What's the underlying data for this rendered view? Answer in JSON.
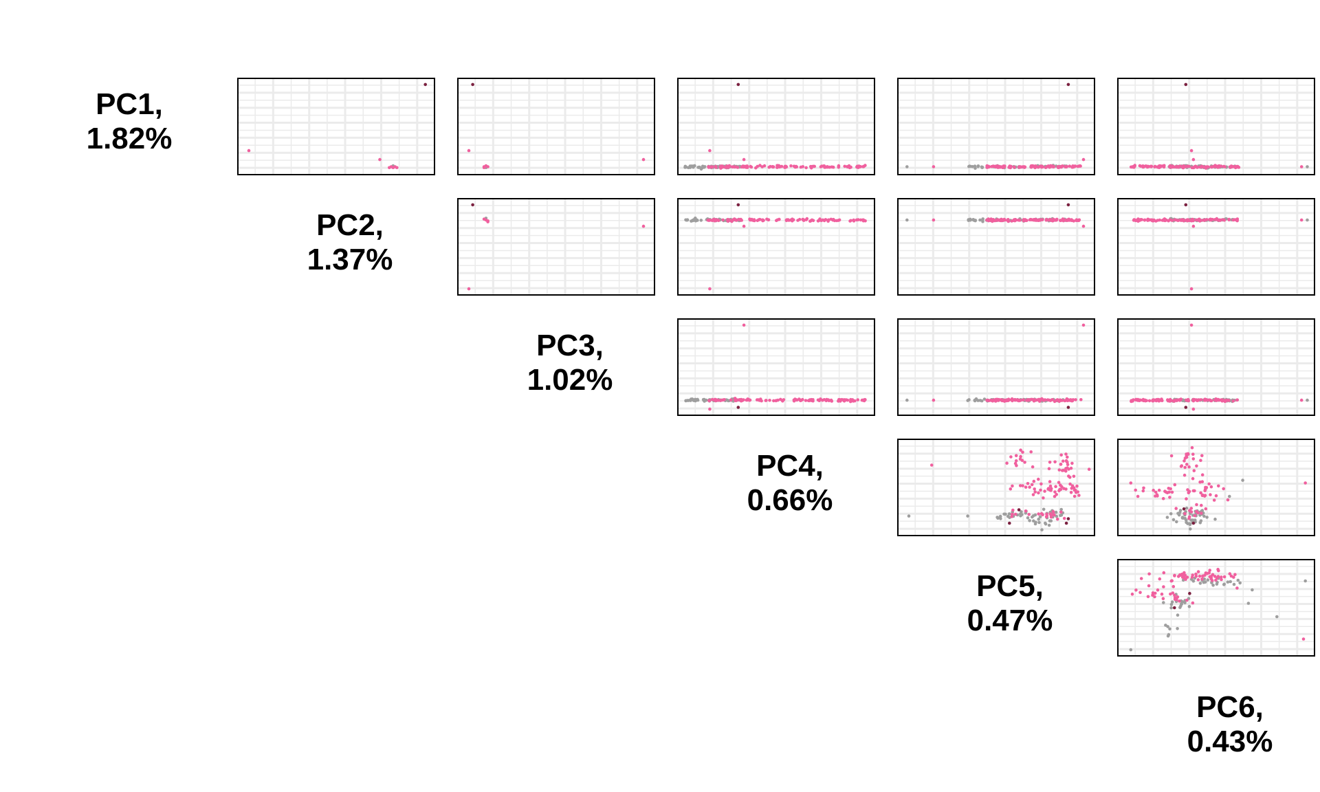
{
  "chart_data": {
    "type": "scatter",
    "layout": "pairs-matrix-upper",
    "diagonal_labels": [
      {
        "line1": "PC1,",
        "line2": "1.82%"
      },
      {
        "line1": "PC2,",
        "line2": "1.37%"
      },
      {
        "line1": "PC3,",
        "line2": "1.02%"
      },
      {
        "line1": "PC4,",
        "line2": "0.66%"
      },
      {
        "line1": "PC5,",
        "line2": "0.47%"
      },
      {
        "line1": "PC6,",
        "line2": "0.43%"
      }
    ],
    "series_colors": {
      "pink": "#f0609e",
      "gray": "#9e9e9e",
      "dark": "#7b2140"
    },
    "grid": true,
    "panel_background": "#ffffff",
    "grid_color": "#ebebeb",
    "panels": [
      {
        "row": 1,
        "col": 2,
        "points": [
          {
            "x": 0.04,
            "y": 0.23,
            "c": "pink"
          },
          {
            "x": 0.97,
            "y": 0.97,
            "c": "dark"
          },
          {
            "x": 0.73,
            "y": 0.13,
            "c": "pink"
          },
          {
            "x": 0.79,
            "y": 0.05,
            "c": "pink"
          },
          {
            "x": 0.8,
            "y": 0.04,
            "c": "pink"
          },
          {
            "x": 0.81,
            "y": 0.05,
            "c": "pink"
          },
          {
            "x": 0.78,
            "y": 0.04,
            "c": "pink"
          },
          {
            "x": 0.8,
            "y": 0.06,
            "c": "gray"
          },
          {
            "x": 0.82,
            "y": 0.04,
            "c": "pink"
          }
        ]
      },
      {
        "row": 1,
        "col": 3,
        "points": [
          {
            "x": 0.06,
            "y": 0.97,
            "c": "dark"
          },
          {
            "x": 0.04,
            "y": 0.23,
            "c": "pink"
          },
          {
            "x": 0.96,
            "y": 0.13,
            "c": "pink"
          },
          {
            "x": 0.12,
            "y": 0.05,
            "c": "pink"
          },
          {
            "x": 0.13,
            "y": 0.04,
            "c": "gray"
          },
          {
            "x": 0.14,
            "y": 0.05,
            "c": "pink"
          },
          {
            "x": 0.12,
            "y": 0.04,
            "c": "pink"
          },
          {
            "x": 0.13,
            "y": 0.06,
            "c": "pink"
          }
        ]
      },
      {
        "row": 1,
        "col": 4,
        "band": {
          "y": 0.05,
          "gray": [
            0.02,
            0.32
          ],
          "pink": [
            0.14,
            0.97
          ],
          "n": 90
        },
        "points": [
          {
            "x": 0.3,
            "y": 0.97,
            "c": "dark"
          },
          {
            "x": 0.15,
            "y": 0.23,
            "c": "pink"
          },
          {
            "x": 0.33,
            "y": 0.13,
            "c": "pink"
          }
        ]
      },
      {
        "row": 1,
        "col": 5,
        "band": {
          "y": 0.05,
          "gray": [
            0.35,
            0.88
          ],
          "pink": [
            0.45,
            0.95
          ],
          "n": 90
        },
        "points": [
          {
            "x": 0.88,
            "y": 0.97,
            "c": "dark"
          },
          {
            "x": 0.03,
            "y": 0.05,
            "c": "gray"
          },
          {
            "x": 0.17,
            "y": 0.05,
            "c": "pink"
          },
          {
            "x": 0.96,
            "y": 0.13,
            "c": "pink"
          }
        ]
      },
      {
        "row": 1,
        "col": 6,
        "band": {
          "y": 0.05,
          "gray": [
            0.25,
            0.6
          ],
          "pink": [
            0.05,
            0.62
          ],
          "n": 90
        },
        "points": [
          {
            "x": 0.34,
            "y": 0.97,
            "c": "dark"
          },
          {
            "x": 0.37,
            "y": 0.23,
            "c": "pink"
          },
          {
            "x": 0.38,
            "y": 0.13,
            "c": "pink"
          },
          {
            "x": 0.98,
            "y": 0.05,
            "c": "gray"
          },
          {
            "x": 0.95,
            "y": 0.05,
            "c": "pink"
          }
        ]
      },
      {
        "row": 2,
        "col": 3,
        "points": [
          {
            "x": 0.06,
            "y": 0.97,
            "c": "dark"
          },
          {
            "x": 0.04,
            "y": 0.03,
            "c": "pink"
          },
          {
            "x": 0.96,
            "y": 0.73,
            "c": "pink"
          },
          {
            "x": 0.13,
            "y": 0.8,
            "c": "pink"
          },
          {
            "x": 0.14,
            "y": 0.79,
            "c": "pink"
          },
          {
            "x": 0.12,
            "y": 0.81,
            "c": "pink"
          },
          {
            "x": 0.13,
            "y": 0.82,
            "c": "gray"
          },
          {
            "x": 0.14,
            "y": 0.78,
            "c": "pink"
          }
        ]
      },
      {
        "row": 2,
        "col": 4,
        "band": {
          "y": 0.8,
          "gray": [
            0.02,
            0.32
          ],
          "pink": [
            0.14,
            0.97
          ],
          "n": 90
        },
        "points": [
          {
            "x": 0.3,
            "y": 0.97,
            "c": "dark"
          },
          {
            "x": 0.15,
            "y": 0.03,
            "c": "pink"
          },
          {
            "x": 0.33,
            "y": 0.73,
            "c": "pink"
          }
        ]
      },
      {
        "row": 2,
        "col": 5,
        "band": {
          "y": 0.8,
          "gray": [
            0.35,
            0.88
          ],
          "pink": [
            0.45,
            0.95
          ],
          "n": 90
        },
        "points": [
          {
            "x": 0.88,
            "y": 0.97,
            "c": "dark"
          },
          {
            "x": 0.03,
            "y": 0.8,
            "c": "gray"
          },
          {
            "x": 0.17,
            "y": 0.8,
            "c": "pink"
          },
          {
            "x": 0.96,
            "y": 0.73,
            "c": "pink"
          }
        ]
      },
      {
        "row": 2,
        "col": 6,
        "band": {
          "y": 0.8,
          "gray": [
            0.25,
            0.6
          ],
          "pink": [
            0.05,
            0.62
          ],
          "n": 90
        },
        "points": [
          {
            "x": 0.34,
            "y": 0.97,
            "c": "dark"
          },
          {
            "x": 0.37,
            "y": 0.03,
            "c": "pink"
          },
          {
            "x": 0.38,
            "y": 0.73,
            "c": "pink"
          },
          {
            "x": 0.98,
            "y": 0.8,
            "c": "gray"
          },
          {
            "x": 0.95,
            "y": 0.8,
            "c": "pink"
          }
        ]
      },
      {
        "row": 3,
        "col": 4,
        "band": {
          "y": 0.13,
          "gray": [
            0.02,
            0.32
          ],
          "pink": [
            0.14,
            0.97
          ],
          "n": 90
        },
        "points": [
          {
            "x": 0.3,
            "y": 0.05,
            "c": "dark"
          },
          {
            "x": 0.15,
            "y": 0.03,
            "c": "pink"
          },
          {
            "x": 0.33,
            "y": 0.97,
            "c": "pink"
          }
        ]
      },
      {
        "row": 3,
        "col": 5,
        "band": {
          "y": 0.13,
          "gray": [
            0.35,
            0.88
          ],
          "pink": [
            0.45,
            0.95
          ],
          "n": 90
        },
        "points": [
          {
            "x": 0.88,
            "y": 0.05,
            "c": "dark"
          },
          {
            "x": 0.03,
            "y": 0.13,
            "c": "gray"
          },
          {
            "x": 0.17,
            "y": 0.13,
            "c": "pink"
          },
          {
            "x": 0.96,
            "y": 0.97,
            "c": "pink"
          }
        ]
      },
      {
        "row": 3,
        "col": 6,
        "band": {
          "y": 0.13,
          "gray": [
            0.25,
            0.6
          ],
          "pink": [
            0.05,
            0.62
          ],
          "n": 90
        },
        "points": [
          {
            "x": 0.34,
            "y": 0.05,
            "c": "dark"
          },
          {
            "x": 0.37,
            "y": 0.97,
            "c": "pink"
          },
          {
            "x": 0.38,
            "y": 0.03,
            "c": "pink"
          },
          {
            "x": 0.98,
            "y": 0.13,
            "c": "gray"
          },
          {
            "x": 0.95,
            "y": 0.13,
            "c": "pink"
          }
        ]
      },
      {
        "row": 4,
        "col": 5,
        "clusters": [
          {
            "cx": 0.62,
            "cy": 0.85,
            "sx": 0.03,
            "sy": 0.06,
            "n": 14,
            "c": "pink"
          },
          {
            "cx": 0.85,
            "cy": 0.72,
            "sx": 0.05,
            "sy": 0.06,
            "n": 26,
            "c": "pink"
          },
          {
            "cx": 0.82,
            "cy": 0.47,
            "sx": 0.07,
            "sy": 0.05,
            "n": 34,
            "c": "pink"
          },
          {
            "cx": 0.66,
            "cy": 0.5,
            "sx": 0.05,
            "sy": 0.04,
            "n": 14,
            "c": "pink"
          },
          {
            "cx": 0.58,
            "cy": 0.18,
            "sx": 0.06,
            "sy": 0.03,
            "n": 22,
            "c": "gray"
          },
          {
            "cx": 0.79,
            "cy": 0.16,
            "sx": 0.05,
            "sy": 0.05,
            "n": 30,
            "c": "gray"
          },
          {
            "cx": 0.8,
            "cy": 0.2,
            "sx": 0.05,
            "sy": 0.04,
            "n": 16,
            "c": "pink"
          },
          {
            "cx": 0.62,
            "cy": 0.2,
            "sx": 0.03,
            "sy": 0.03,
            "n": 6,
            "c": "pink"
          }
        ],
        "points": [
          {
            "x": 0.16,
            "y": 0.75,
            "c": "pink"
          },
          {
            "x": 0.04,
            "y": 0.18,
            "c": "gray"
          },
          {
            "x": 0.35,
            "y": 0.18,
            "c": "gray"
          },
          {
            "x": 0.93,
            "y": 0.45,
            "c": "pink"
          },
          {
            "x": 0.87,
            "y": 0.1,
            "c": "dark"
          },
          {
            "x": 0.62,
            "y": 0.25,
            "c": "dark"
          },
          {
            "x": 0.57,
            "y": 0.1,
            "c": "dark"
          },
          {
            "x": 0.88,
            "y": 0.15,
            "c": "dark"
          }
        ]
      },
      {
        "row": 4,
        "col": 6,
        "clusters": [
          {
            "cx": 0.34,
            "cy": 0.78,
            "sx": 0.05,
            "sy": 0.1,
            "n": 24,
            "c": "pink"
          },
          {
            "cx": 0.22,
            "cy": 0.45,
            "sx": 0.07,
            "sy": 0.04,
            "n": 24,
            "c": "pink"
          },
          {
            "cx": 0.46,
            "cy": 0.45,
            "sx": 0.07,
            "sy": 0.05,
            "n": 20,
            "c": "pink"
          },
          {
            "cx": 0.36,
            "cy": 0.17,
            "sx": 0.06,
            "sy": 0.05,
            "n": 46,
            "c": "gray"
          },
          {
            "cx": 0.36,
            "cy": 0.22,
            "sx": 0.05,
            "sy": 0.04,
            "n": 14,
            "c": "pink"
          }
        ],
        "points": [
          {
            "x": 0.05,
            "y": 0.55,
            "c": "pink"
          },
          {
            "x": 0.97,
            "y": 0.55,
            "c": "pink"
          },
          {
            "x": 0.57,
            "y": 0.4,
            "c": "gray"
          },
          {
            "x": 0.64,
            "y": 0.58,
            "c": "gray"
          },
          {
            "x": 0.38,
            "y": 0.1,
            "c": "dark"
          },
          {
            "x": 0.33,
            "y": 0.26,
            "c": "dark"
          }
        ]
      },
      {
        "row": 5,
        "col": 6,
        "clusters": [
          {
            "cx": 0.34,
            "cy": 0.86,
            "sx": 0.09,
            "sy": 0.03,
            "n": 40,
            "c": "pink"
          },
          {
            "cx": 0.48,
            "cy": 0.8,
            "sx": 0.07,
            "sy": 0.04,
            "n": 24,
            "c": "gray"
          },
          {
            "cx": 0.5,
            "cy": 0.86,
            "sx": 0.06,
            "sy": 0.03,
            "n": 14,
            "c": "pink"
          },
          {
            "cx": 0.3,
            "cy": 0.62,
            "sx": 0.05,
            "sy": 0.05,
            "n": 16,
            "c": "pink"
          },
          {
            "cx": 0.32,
            "cy": 0.55,
            "sx": 0.04,
            "sy": 0.06,
            "n": 18,
            "c": "gray"
          },
          {
            "cx": 0.14,
            "cy": 0.68,
            "sx": 0.04,
            "sy": 0.04,
            "n": 10,
            "c": "pink"
          },
          {
            "cx": 0.25,
            "cy": 0.28,
            "sx": 0.02,
            "sy": 0.05,
            "n": 6,
            "c": "gray"
          }
        ],
        "points": [
          {
            "x": 0.69,
            "y": 0.7,
            "c": "gray"
          },
          {
            "x": 0.61,
            "y": 0.72,
            "c": "pink"
          },
          {
            "x": 0.05,
            "y": 0.03,
            "c": "gray"
          },
          {
            "x": 0.97,
            "y": 0.8,
            "c": "gray"
          },
          {
            "x": 0.96,
            "y": 0.15,
            "c": "pink"
          },
          {
            "x": 0.82,
            "y": 0.4,
            "c": "gray"
          },
          {
            "x": 0.67,
            "y": 0.55,
            "c": "gray"
          },
          {
            "x": 0.36,
            "y": 0.66,
            "c": "dark"
          },
          {
            "x": 0.28,
            "y": 0.5,
            "c": "dark"
          }
        ]
      }
    ]
  }
}
